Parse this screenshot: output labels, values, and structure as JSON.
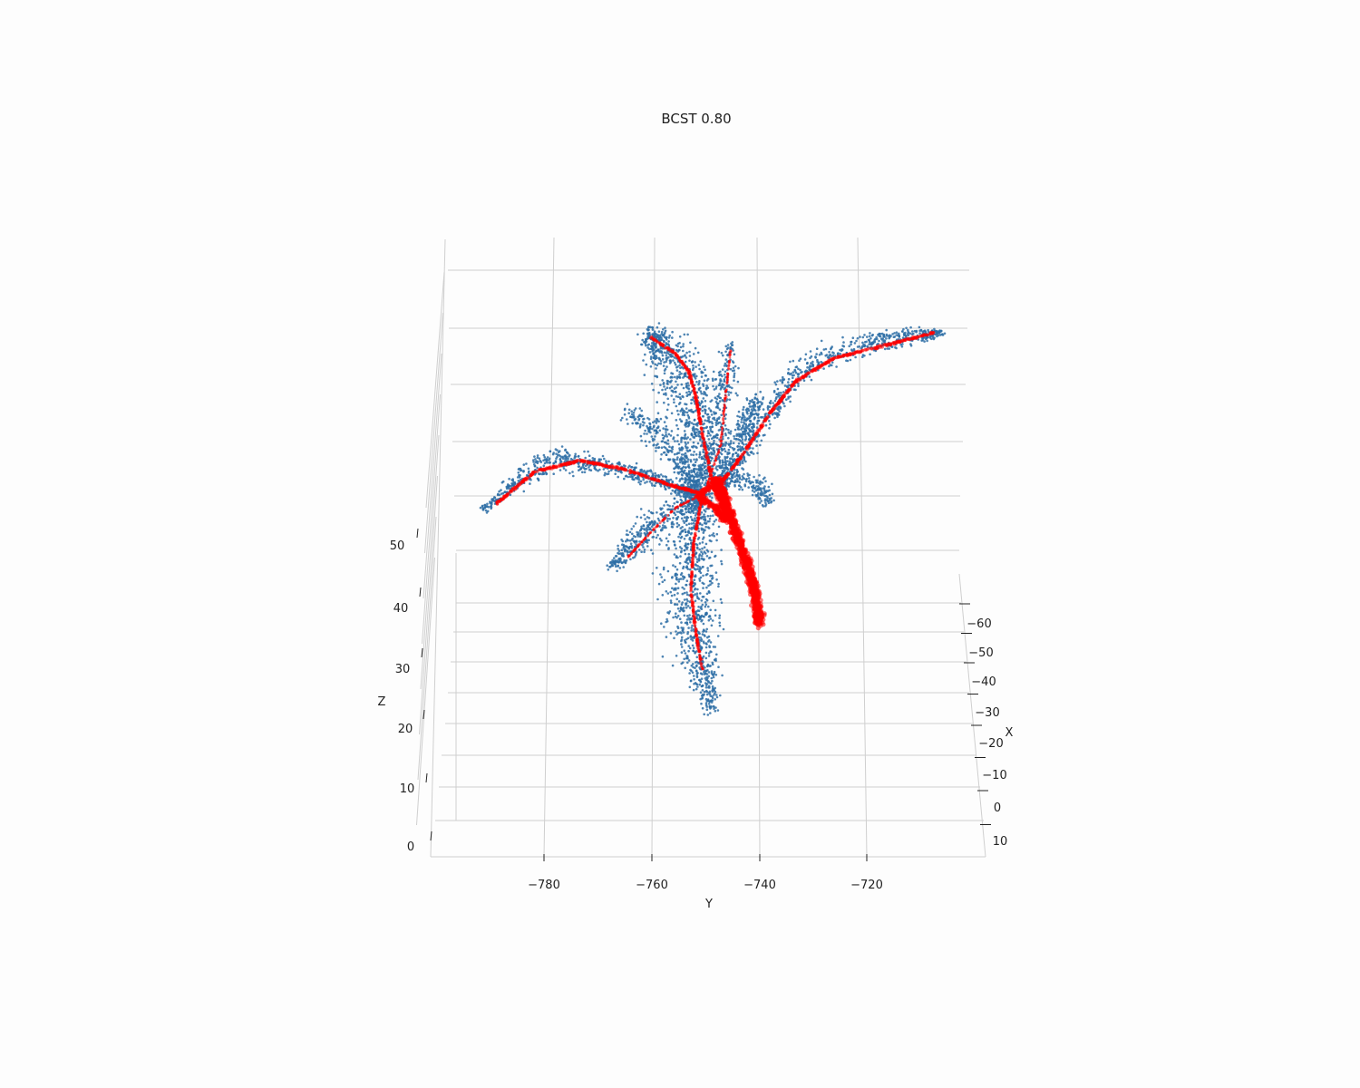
{
  "chart_data": {
    "type": "scatter",
    "projection": "3d",
    "title": "BCST 0.80",
    "xlabel": "X",
    "ylabel": "Y",
    "zlabel": "Z",
    "x_ticks": [
      "−60",
      "−50",
      "−40",
      "−30",
      "−20",
      "−10",
      "0",
      "10"
    ],
    "y_ticks": [
      "−780",
      "−760",
      "−740",
      "−720"
    ],
    "z_ticks": [
      "0",
      "10",
      "20",
      "30",
      "40",
      "50"
    ],
    "series": [
      {
        "color": "#2e6ea6",
        "marker": "point"
      },
      {
        "color": "#ff0000",
        "marker": "point"
      }
    ],
    "grid": true
  }
}
